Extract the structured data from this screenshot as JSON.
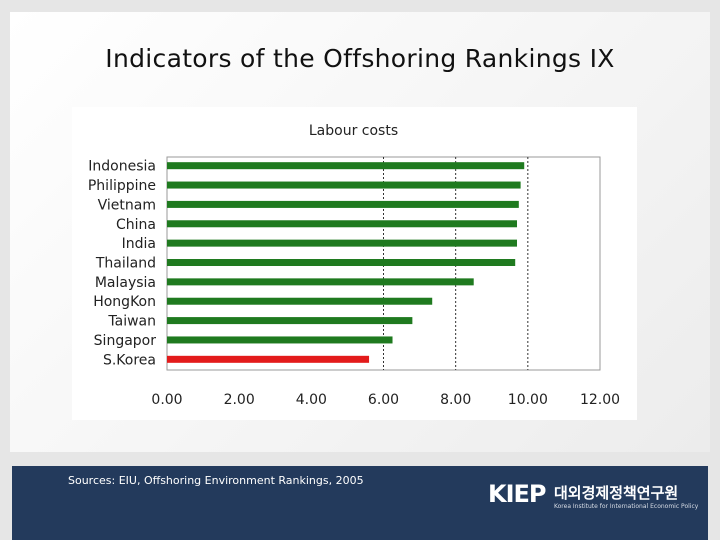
{
  "title": "Indicators of the Offshoring Rankings IX",
  "footer": {
    "sources": "Sources: EIU, Offshoring Environment Rankings, 2005",
    "logo": {
      "mark": "KIEP",
      "korean": "대외경제정책연구원",
      "english": "Korea Institute for International Economic Policy"
    }
  },
  "colors": {
    "bar_default": "#1f7a1f",
    "bar_highlight": "#e31b1b",
    "footer_bg": "#233a5c"
  },
  "chart_data": {
    "type": "bar",
    "orientation": "horizontal",
    "title": "Labour costs",
    "categories": [
      "Indonesia",
      "Philippine",
      "Vietnam",
      "China",
      "India",
      "Thailand",
      "Malaysia",
      "HongKon",
      "Taiwan",
      "Singapor",
      "S.Korea"
    ],
    "values": [
      9.9,
      9.8,
      9.75,
      9.7,
      9.7,
      9.65,
      8.5,
      7.35,
      6.8,
      6.25,
      5.6
    ],
    "highlight": "S.Korea",
    "xlim": [
      0,
      12
    ],
    "xticks": [
      "0.00",
      "2.00",
      "4.00",
      "6.00",
      "8.00",
      "10.00",
      "12.00"
    ],
    "gridlines_at": [
      6,
      8,
      10
    ],
    "grid": "dotted vertical",
    "legend": "none"
  }
}
